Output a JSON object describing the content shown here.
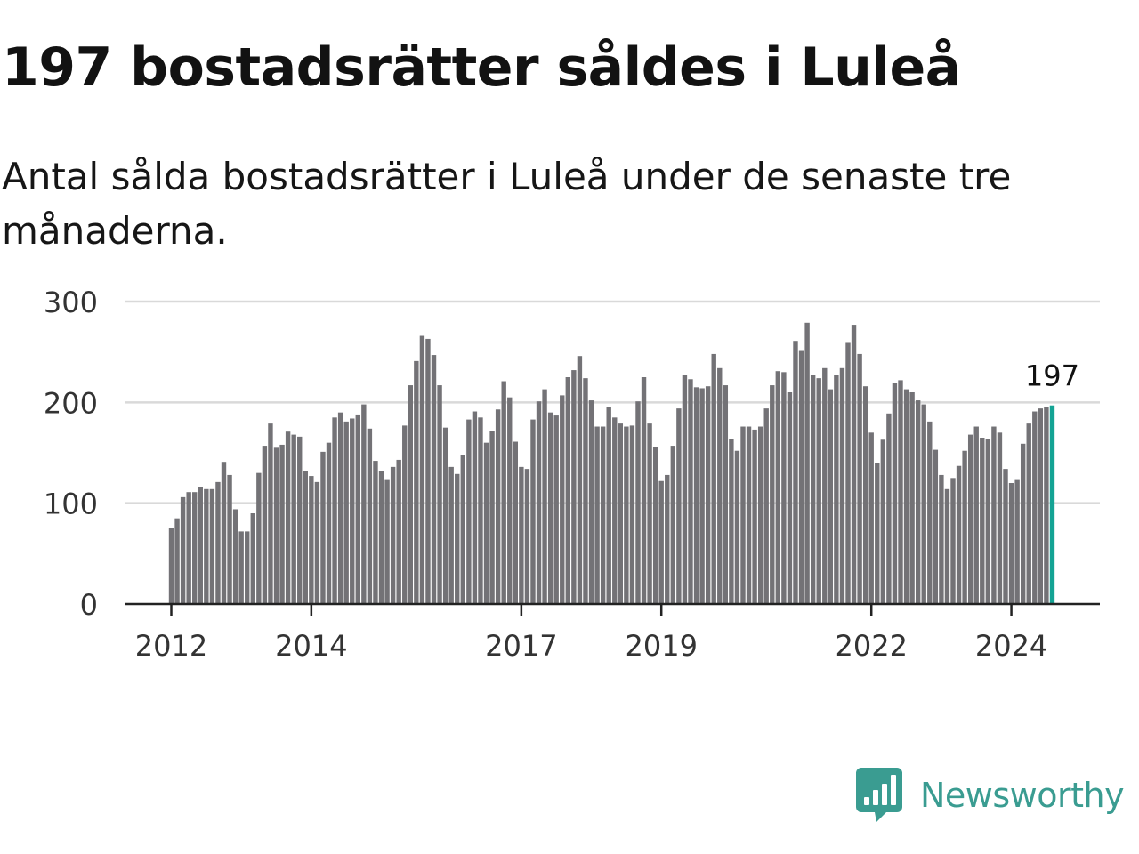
{
  "title": "197 bostadsrätter såldes i Luleå",
  "subtitle": "Antal sålda bostadsrätter i Luleå under de senaste tre månaderna.",
  "brand": {
    "name": "Newsworthy",
    "color": "#3a9c91",
    "icon": "newsworthy-logo-icon"
  },
  "colors": {
    "bar": "#737276",
    "highlight": "#14a394",
    "grid": "#d9d9d9",
    "axis": "#222222"
  },
  "chart_data": {
    "type": "bar",
    "title": "197 bostadsrätter såldes i Luleå",
    "xlabel": "",
    "ylabel": "",
    "x_start": "2012-01",
    "ylim": [
      0,
      300
    ],
    "y_ticks": [
      0,
      100,
      200,
      300
    ],
    "x_tick_labels": [
      {
        "label": "2012",
        "index": 0
      },
      {
        "label": "2014",
        "index": 24
      },
      {
        "label": "2017",
        "index": 60
      },
      {
        "label": "2019",
        "index": 84
      },
      {
        "label": "2022",
        "index": 120
      },
      {
        "label": "2024",
        "index": 144
      }
    ],
    "values": [
      75,
      85,
      106,
      111,
      111,
      116,
      114,
      114,
      121,
      141,
      128,
      94,
      72,
      72,
      90,
      130,
      157,
      179,
      155,
      158,
      171,
      168,
      166,
      132,
      127,
      121,
      151,
      160,
      185,
      190,
      181,
      184,
      188,
      198,
      174,
      142,
      132,
      123,
      136,
      143,
      177,
      217,
      241,
      266,
      263,
      247,
      217,
      175,
      136,
      129,
      148,
      183,
      191,
      185,
      160,
      172,
      193,
      221,
      205,
      161,
      136,
      134,
      183,
      201,
      213,
      190,
      187,
      207,
      225,
      232,
      246,
      224,
      202,
      176,
      176,
      195,
      185,
      179,
      176,
      177,
      201,
      225,
      179,
      156,
      122,
      128,
      157,
      194,
      227,
      223,
      215,
      214,
      216,
      248,
      234,
      217,
      164,
      152,
      176,
      176,
      173,
      176,
      194,
      217,
      231,
      230,
      210,
      261,
      251,
      279,
      227,
      224,
      234,
      213,
      227,
      234,
      259,
      277,
      248,
      216,
      170,
      140,
      163,
      189,
      219,
      222,
      213,
      210,
      202,
      198,
      181,
      153,
      128,
      114,
      125,
      137,
      152,
      168,
      176,
      165,
      164,
      176,
      170,
      134,
      120,
      123,
      159,
      179,
      191,
      194,
      195,
      197
    ],
    "highlight": {
      "index": 151,
      "label": "197"
    }
  }
}
